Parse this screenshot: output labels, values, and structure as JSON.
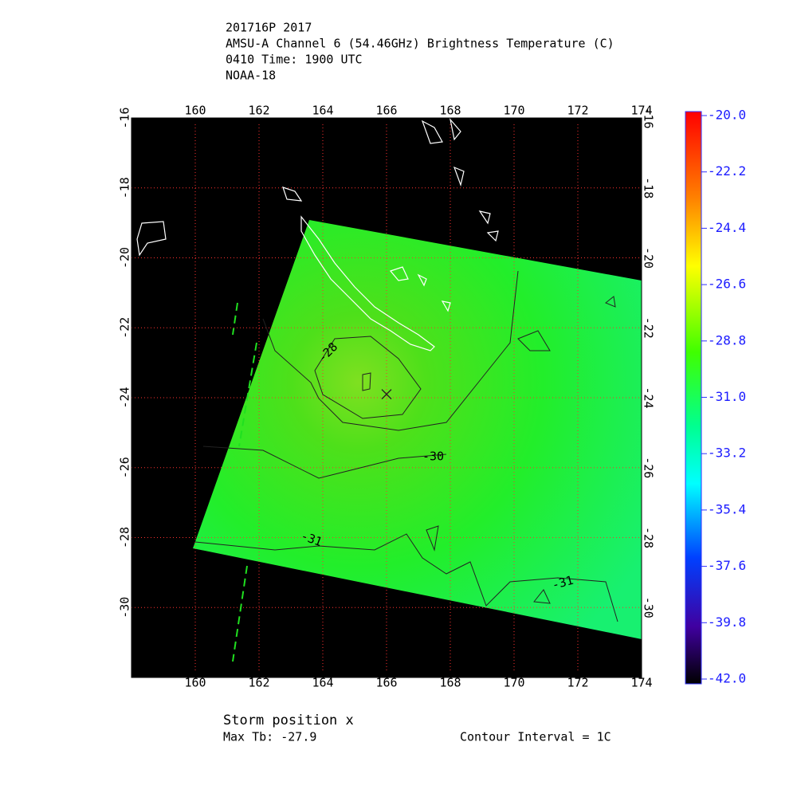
{
  "header": {
    "lines": [
      "201716P 2017",
      "AMSU-A Channel 6 (54.46GHz) Brightness Temperature (C)",
      "0410 Time: 1900 UTC",
      "NOAA-18"
    ]
  },
  "map": {
    "lon_range": [
      158,
      174
    ],
    "lat_range": [
      -16,
      -32
    ],
    "lon_ticks": [
      160,
      162,
      164,
      166,
      168,
      170,
      172,
      174
    ],
    "lat_ticks": [
      -16,
      -18,
      -20,
      -22,
      -24,
      -26,
      -28,
      -30
    ],
    "contour_labels": [
      "-28",
      "-30",
      "-31",
      "-31"
    ],
    "storm_position": {
      "lon": 166,
      "lat": -23.9
    }
  },
  "colorbar": {
    "range": [
      -42,
      -20
    ],
    "ticks": [
      {
        "value": -20,
        "label": "-20.0"
      },
      {
        "value": -22.2,
        "label": "-22.2"
      },
      {
        "value": -24.4,
        "label": "-24.4"
      },
      {
        "value": -26.6,
        "label": "-26.6"
      },
      {
        "value": -28.8,
        "label": "-28.8"
      },
      {
        "value": -31,
        "label": "-31.0"
      },
      {
        "value": -33.2,
        "label": "-33.2"
      },
      {
        "value": -35.4,
        "label": "-35.4"
      },
      {
        "value": -37.6,
        "label": "-37.6"
      },
      {
        "value": -39.8,
        "label": "-39.8"
      },
      {
        "value": -42,
        "label": "-42.0"
      }
    ]
  },
  "footer": {
    "storm": "Storm position x",
    "max_tb": "Max Tb: -27.9",
    "contour_interval": "Contour Interval = 1C"
  }
}
